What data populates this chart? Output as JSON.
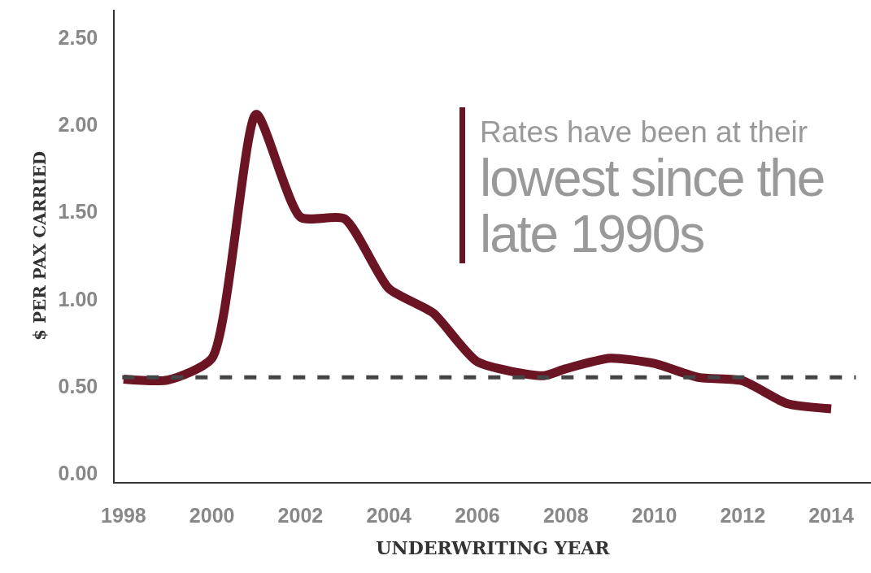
{
  "chart_data": {
    "type": "line",
    "xlabel": "UNDERWRITING YEAR",
    "ylabel": "$ PER PAX CARRIED",
    "x": [
      1998,
      1999,
      2000,
      2001,
      2002,
      2003,
      2004,
      2005,
      2006,
      2007.5,
      2008,
      2009,
      2010,
      2011,
      2012,
      2013,
      2014
    ],
    "series": [
      {
        "color": "#6b1423",
        "values": [
          0.54,
          0.535,
          0.66,
          2.06,
          1.47,
          1.46,
          1.06,
          0.92,
          0.64,
          0.56,
          0.6,
          0.66,
          0.63,
          0.55,
          0.53,
          0.4,
          0.37
        ]
      }
    ],
    "xlim": [
      1997.8,
      2014.9
    ],
    "xticks": [
      1998,
      2000,
      2002,
      2004,
      2006,
      2008,
      2010,
      2012,
      2014
    ],
    "ylim": [
      -0.05,
      2.66
    ],
    "yticks": [
      {
        "value": 0,
        "label": "0.00"
      },
      {
        "value": 0.5,
        "label": "0.50"
      },
      {
        "value": 1,
        "label": "1.00"
      },
      {
        "value": 1.5,
        "label": "1.50"
      },
      {
        "value": 2,
        "label": "2.00"
      },
      {
        "value": 2.5,
        "label": "2.50"
      }
    ],
    "ref_lines": [
      {
        "axis": "y",
        "value": 0.55,
        "color": "#444444",
        "line_style": "dashed"
      }
    ],
    "annotations": [
      "Rates have been at their",
      "lowest since the late 1990s"
    ],
    "grid": false,
    "marker": "none",
    "line_style": "solid"
  }
}
